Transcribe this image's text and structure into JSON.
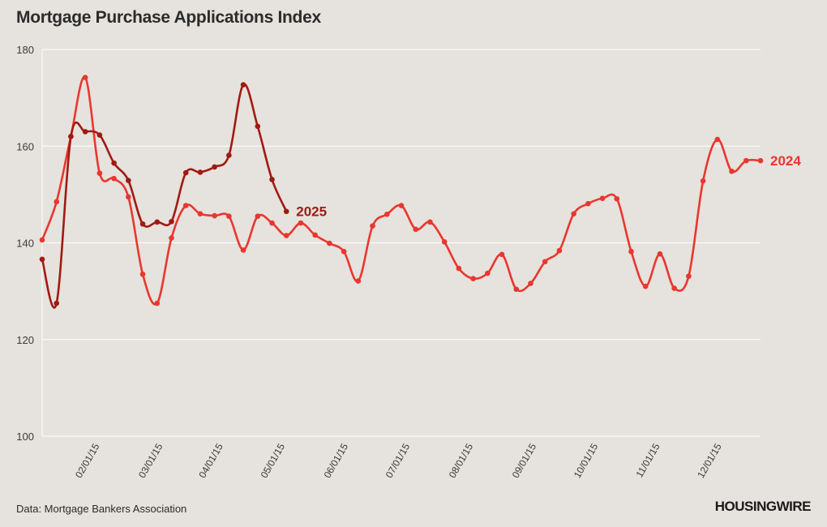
{
  "colors": {
    "background": "#e6e2dd",
    "series_2024": "#e8372f",
    "series_2025": "#a01a12",
    "grid": "#ffffff"
  },
  "chart_data": {
    "type": "line",
    "title": "Mortgage Purchase Applications Index",
    "source": "Data: Mortgage Bankers Association",
    "brand": "HOUSINGWIRE",
    "xlabel": "",
    "ylabel": "",
    "ylim": [
      100,
      180
    ],
    "yticks": [
      100,
      120,
      140,
      160,
      180
    ],
    "xlim": [
      0,
      50
    ],
    "xticks": [
      {
        "x": 4,
        "label": "02/01/15"
      },
      {
        "x": 8.4,
        "label": "03/01/15"
      },
      {
        "x": 12.6,
        "label": "04/01/15"
      },
      {
        "x": 16.9,
        "label": "05/01/15"
      },
      {
        "x": 21.3,
        "label": "06/01/15"
      },
      {
        "x": 25.6,
        "label": "07/01/15"
      },
      {
        "x": 30,
        "label": "08/01/15"
      },
      {
        "x": 34.4,
        "label": "09/01/15"
      },
      {
        "x": 38.7,
        "label": "10/01/15"
      },
      {
        "x": 43,
        "label": "11/01/15"
      },
      {
        "x": 47.3,
        "label": "12/01/15"
      }
    ],
    "grid": true,
    "series": [
      {
        "name": "2024",
        "x": [
          0,
          1,
          2,
          3,
          4,
          5,
          6,
          7,
          8,
          9,
          10,
          11,
          12,
          13,
          14,
          15,
          16,
          17,
          18,
          19,
          20,
          21,
          22,
          23,
          24,
          25,
          26,
          27,
          28,
          29,
          30,
          31,
          32,
          33,
          34,
          35,
          36,
          37,
          38,
          39,
          40,
          41,
          42,
          43,
          44,
          45,
          46,
          47,
          48,
          49,
          50
        ],
        "values": [
          140.6,
          148.5,
          162,
          174.2,
          154.4,
          153.3,
          149.5,
          133.5,
          127.5,
          141,
          147.7,
          146,
          145.6,
          145.5,
          138.5,
          145.5,
          144.1,
          141.5,
          144.1,
          141.6,
          139.9,
          138.2,
          132.1,
          143.5,
          145.9,
          147.7,
          142.8,
          144.3,
          140.2,
          134.7,
          132.6,
          133.7,
          137.6,
          130.4,
          131.6,
          136.1,
          138.4,
          146,
          148.1,
          149.2,
          149.1,
          138.2,
          131,
          137.7,
          130.6,
          133.1,
          152.8,
          161.4,
          154.8,
          157,
          157
        ]
      },
      {
        "name": "2025",
        "x": [
          0,
          1,
          2,
          3,
          4,
          5,
          6,
          7,
          8,
          9,
          10,
          11,
          12,
          13,
          14,
          15,
          16,
          17
        ],
        "values": [
          136.6,
          127.5,
          162,
          163,
          162.3,
          156.5,
          152.9,
          143.9,
          144.3,
          144.4,
          154.5,
          154.6,
          155.7,
          158.1,
          172.7,
          164.1,
          153.1,
          146.5
        ]
      }
    ]
  }
}
